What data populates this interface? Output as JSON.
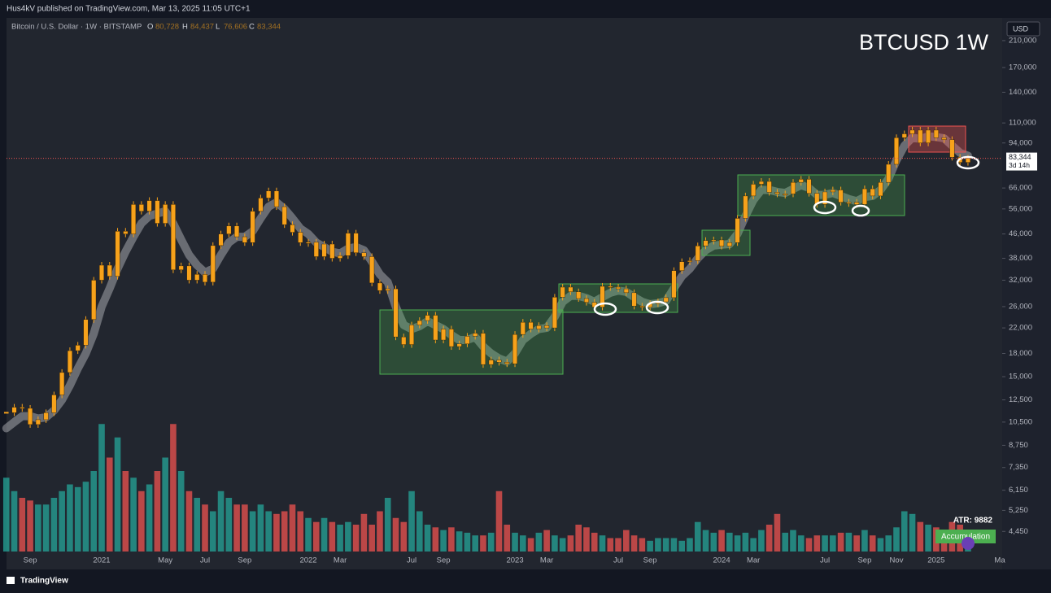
{
  "header": {
    "published": "Hus4kV published on TradingView.com, Mar 13, 2025 11:05 UTC+1",
    "symbol": "Bitcoin / U.S. Dollar · 1W · BITSTAMP",
    "ohlc": [
      {
        "key": "O",
        "value": "80,728"
      },
      {
        "key": "H",
        "value": "84,437"
      },
      {
        "key": "L",
        "value": "76,606"
      },
      {
        "key": "C",
        "value": "83,344"
      }
    ],
    "currency": "USD",
    "logo": "TradingView"
  },
  "indicators": {
    "atr": "ATR: 9882",
    "badge": "Accumulation"
  },
  "chart_data": {
    "type": "candlestick",
    "title": "BTCUSD 1W",
    "log_scale": true,
    "grid": false,
    "categories": [
      null,
      null,
      null,
      "Sep",
      null,
      null,
      null,
      null,
      null,
      null,
      null,
      null,
      "2021",
      null,
      null,
      null,
      null,
      null,
      null,
      null,
      "May",
      null,
      null,
      null,
      null,
      "Jul",
      null,
      null,
      null,
      null,
      "Sep",
      null,
      null,
      null,
      null,
      null,
      null,
      null,
      "2022",
      null,
      null,
      null,
      "Mar",
      null,
      null,
      null,
      null,
      null,
      null,
      null,
      null,
      "Jul",
      null,
      null,
      null,
      "Sep",
      null,
      null,
      null,
      null,
      null,
      null,
      null,
      null,
      "2023",
      null,
      null,
      null,
      "Mar",
      null,
      null,
      null,
      null,
      null,
      null,
      null,
      null,
      "Jul",
      null,
      null,
      null,
      "Sep",
      null,
      null,
      null,
      null,
      null,
      null,
      null,
      null,
      "2024",
      null,
      null,
      null,
      "Mar",
      null,
      null,
      null,
      null,
      null,
      null,
      null,
      null,
      "Jul",
      null,
      null,
      null,
      null,
      "Sep",
      null,
      null,
      null,
      "Nov",
      null,
      null,
      null,
      null,
      "2025",
      null,
      null,
      null,
      null,
      null,
      null,
      null,
      "Ma"
    ],
    "series": [
      {
        "color": "#f7a21b",
        "values": [
          11300,
          11800,
          11700,
          10300,
          10700,
          11300,
          13000,
          15500,
          18400,
          19200,
          23500,
          32000,
          36000,
          33000,
          47000,
          46000,
          58000,
          55000,
          59800,
          50000,
          58000,
          34700,
          35800,
          32000,
          33500,
          31500,
          42000,
          46000,
          49000,
          45000,
          43000,
          55000,
          61000,
          64500,
          57000,
          49500,
          46600,
          43000,
          43100,
          38500,
          42500,
          38000,
          38800,
          46300,
          39700,
          38500,
          31300,
          29500,
          29900,
          20500,
          19300,
          22500,
          23300,
          24300,
          20000,
          21800,
          19000,
          19400,
          20600,
          21100,
          16500,
          17100,
          16800,
          16600,
          20900,
          23000,
          21800,
          22400,
          22000,
          28000,
          30300,
          29200,
          27700,
          26900,
          25900,
          30500,
          30300,
          29900,
          29000,
          26100,
          25900,
          26600,
          27000,
          27900,
          34500,
          37000,
          37300,
          41900,
          43700,
          43900,
          41800,
          43000,
          52000,
          62000,
          68000,
          69500,
          63800,
          63000,
          63000,
          69000,
          70700,
          63300,
          58000,
          64000,
          65000,
          59000,
          59000,
          58000,
          65600,
          62000,
          69000,
          79500,
          98000,
          101000,
          104000,
          94000,
          104000,
          98000,
          96500,
          84000,
          80700,
          83344,
          null,
          null,
          null,
          null
        ]
      }
    ],
    "ma": {
      "color": "rgba(205,205,210,0.42)",
      "values": [
        10000,
        10500,
        11000,
        11000,
        10800,
        10900,
        11500,
        12500,
        14000,
        16000,
        18000,
        21000,
        26000,
        30000,
        35000,
        40000,
        45000,
        50000,
        53000,
        54000,
        55000,
        50000,
        44000,
        39000,
        36000,
        34000,
        35000,
        39000,
        43000,
        45000,
        45000,
        47000,
        52000,
        57000,
        59000,
        56000,
        52000,
        48000,
        46000,
        43000,
        41500,
        40000,
        39500,
        41000,
        41500,
        40500,
        37000,
        33500,
        31500,
        26000,
        22500,
        21800,
        22300,
        23200,
        22500,
        21800,
        20800,
        20000,
        20000,
        20500,
        19000,
        18000,
        17300,
        16900,
        18000,
        20000,
        21000,
        21800,
        22000,
        24000,
        27000,
        28300,
        28300,
        27800,
        27000,
        28000,
        29000,
        29500,
        29200,
        28000,
        27000,
        26500,
        26700,
        27200,
        30000,
        33000,
        35000,
        38000,
        40500,
        42000,
        42300,
        42500,
        46000,
        53000,
        60000,
        65000,
        65000,
        64000,
        63500,
        65500,
        67500,
        66000,
        62500,
        62500,
        63500,
        62000,
        60500,
        59500,
        61500,
        62000,
        65000,
        71000,
        82000,
        92000,
        98000,
        97000,
        99000,
        98500,
        97500,
        92000,
        87000,
        85000,
        null,
        null,
        null,
        null
      ]
    },
    "volume": {
      "up_color": "rgba(38,166,154,0.75)",
      "down_color": "rgba(239,83,80,0.75)",
      "ylim": [
        0,
        100
      ],
      "values": [
        55,
        45,
        40,
        38,
        35,
        35,
        40,
        45,
        50,
        48,
        52,
        60,
        95,
        70,
        85,
        60,
        55,
        45,
        50,
        60,
        70,
        95,
        60,
        45,
        40,
        35,
        30,
        45,
        40,
        35,
        35,
        30,
        35,
        30,
        28,
        30,
        35,
        30,
        25,
        22,
        25,
        22,
        20,
        22,
        20,
        28,
        20,
        30,
        40,
        25,
        22,
        45,
        30,
        20,
        18,
        16,
        18,
        15,
        14,
        12,
        12,
        14,
        45,
        20,
        14,
        12,
        10,
        14,
        16,
        12,
        10,
        12,
        20,
        18,
        14,
        12,
        10,
        10,
        16,
        12,
        10,
        8,
        10,
        10,
        10,
        8,
        10,
        22,
        16,
        14,
        16,
        14,
        12,
        14,
        10,
        16,
        20,
        28,
        14,
        16,
        12,
        10,
        12,
        12,
        12,
        14,
        14,
        12,
        16,
        12,
        10,
        12,
        18,
        30,
        28,
        22,
        20,
        18,
        16,
        22,
        20,
        14,
        null,
        null,
        null,
        null
      ]
    },
    "ylim": [
      3800,
      251000
    ],
    "yticks": [
      {
        "value": 210000,
        "label": "210,000"
      },
      {
        "value": 170000,
        "label": "170,000"
      },
      {
        "value": 140000,
        "label": "140,000"
      },
      {
        "value": 110000,
        "label": "110,000"
      },
      {
        "value": 94000,
        "label": "94,000"
      },
      {
        "value": 66000,
        "label": "66,000"
      },
      {
        "value": 56000,
        "label": "56,000"
      },
      {
        "value": 46000,
        "label": "46,000"
      },
      {
        "value": 38000,
        "label": "38,000"
      },
      {
        "value": 32000,
        "label": "32,000"
      },
      {
        "value": 26000,
        "label": "26,000"
      },
      {
        "value": 22000,
        "label": "22,000"
      },
      {
        "value": 18000,
        "label": "18,000"
      },
      {
        "value": 15000,
        "label": "15,000"
      },
      {
        "value": 12500,
        "label": "12,500"
      },
      {
        "value": 10500,
        "label": "10,500"
      },
      {
        "value": 8750,
        "label": "8,750"
      },
      {
        "value": 7350,
        "label": "7,350"
      },
      {
        "value": 6150,
        "label": "6,150"
      },
      {
        "value": 5250,
        "label": "5,250"
      },
      {
        "value": 4450,
        "label": "4,450"
      }
    ],
    "price_line": {
      "value": 83344,
      "label": "83,344",
      "countdown": "3d 14h",
      "color": "#ef5350"
    }
  }
}
